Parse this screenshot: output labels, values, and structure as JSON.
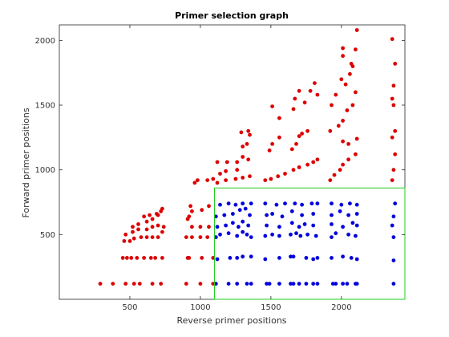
{
  "chart_data": {
    "type": "scatter",
    "title": "Primer selection graph",
    "xlabel": "Reverse primer positions",
    "ylabel": "Forward primer positions",
    "xlim": [
      0,
      2450
    ],
    "ylim": [
      0,
      2120
    ],
    "xticks": [
      500,
      1000,
      1500,
      2000
    ],
    "yticks": [
      500,
      1000,
      1500,
      2000
    ],
    "grid": false,
    "region": {
      "x": [
        1100,
        2450
      ],
      "y": [
        0,
        860
      ],
      "color": "#22cc22"
    },
    "series": [
      {
        "color": "#dd0000",
        "points": [
          [
            290,
            120
          ],
          [
            380,
            120
          ],
          [
            470,
            120
          ],
          [
            530,
            120
          ],
          [
            570,
            120
          ],
          [
            660,
            120
          ],
          [
            720,
            120
          ],
          [
            900,
            120
          ],
          [
            1000,
            120
          ],
          [
            1090,
            120
          ],
          [
            450,
            320
          ],
          [
            480,
            320
          ],
          [
            510,
            320
          ],
          [
            550,
            320
          ],
          [
            600,
            320
          ],
          [
            650,
            320
          ],
          [
            680,
            320
          ],
          [
            730,
            320
          ],
          [
            910,
            320
          ],
          [
            920,
            320
          ],
          [
            1010,
            320
          ],
          [
            1090,
            320
          ],
          [
            460,
            450
          ],
          [
            500,
            450
          ],
          [
            530,
            470
          ],
          [
            580,
            480
          ],
          [
            620,
            480
          ],
          [
            660,
            480
          ],
          [
            700,
            480
          ],
          [
            730,
            520
          ],
          [
            900,
            480
          ],
          [
            940,
            480
          ],
          [
            1000,
            480
          ],
          [
            1050,
            480
          ],
          [
            470,
            500
          ],
          [
            520,
            520
          ],
          [
            560,
            540
          ],
          [
            620,
            540
          ],
          [
            660,
            560
          ],
          [
            700,
            570
          ],
          [
            740,
            560
          ],
          [
            940,
            560
          ],
          [
            1000,
            560
          ],
          [
            1060,
            560
          ],
          [
            520,
            560
          ],
          [
            560,
            580
          ],
          [
            620,
            600
          ],
          [
            660,
            620
          ],
          [
            700,
            650
          ],
          [
            730,
            700
          ],
          [
            910,
            620
          ],
          [
            930,
            720
          ],
          [
            1010,
            690
          ],
          [
            1060,
            720
          ],
          [
            600,
            640
          ],
          [
            640,
            650
          ],
          [
            690,
            660
          ],
          [
            720,
            680
          ],
          [
            920,
            640
          ],
          [
            940,
            680
          ],
          [
            960,
            900
          ],
          [
            980,
            920
          ],
          [
            1050,
            920
          ],
          [
            1090,
            930
          ],
          [
            1120,
            900
          ],
          [
            1180,
            920
          ],
          [
            1250,
            930
          ],
          [
            1300,
            940
          ],
          [
            1350,
            950
          ],
          [
            1120,
            1060
          ],
          [
            1190,
            1060
          ],
          [
            1260,
            1060
          ],
          [
            1300,
            1100
          ],
          [
            1340,
            1080
          ],
          [
            1140,
            970
          ],
          [
            1180,
            990
          ],
          [
            1260,
            1000
          ],
          [
            1300,
            1180
          ],
          [
            1330,
            1200
          ],
          [
            1350,
            1270
          ],
          [
            1290,
            1290
          ],
          [
            1340,
            1300
          ],
          [
            1460,
            920
          ],
          [
            1500,
            930
          ],
          [
            1550,
            950
          ],
          [
            1600,
            970
          ],
          [
            1660,
            1000
          ],
          [
            1700,
            1020
          ],
          [
            1760,
            1040
          ],
          [
            1800,
            1060
          ],
          [
            1830,
            1080
          ],
          [
            1490,
            1150
          ],
          [
            1510,
            1200
          ],
          [
            1560,
            1250
          ],
          [
            1650,
            1160
          ],
          [
            1680,
            1200
          ],
          [
            1700,
            1260
          ],
          [
            1720,
            1280
          ],
          [
            1760,
            1300
          ],
          [
            1510,
            1490
          ],
          [
            1560,
            1400
          ],
          [
            1660,
            1470
          ],
          [
            1670,
            1550
          ],
          [
            1700,
            1610
          ],
          [
            1740,
            1520
          ],
          [
            1780,
            1610
          ],
          [
            1810,
            1670
          ],
          [
            1830,
            1580
          ],
          [
            1920,
            920
          ],
          [
            1950,
            960
          ],
          [
            1990,
            1000
          ],
          [
            2010,
            1040
          ],
          [
            2050,
            1080
          ],
          [
            2100,
            1120
          ],
          [
            2110,
            1240
          ],
          [
            2050,
            1200
          ],
          [
            2010,
            1220
          ],
          [
            1920,
            1300
          ],
          [
            1980,
            1340
          ],
          [
            2010,
            1380
          ],
          [
            2040,
            1460
          ],
          [
            2080,
            1500
          ],
          [
            2100,
            1600
          ],
          [
            2000,
            1700
          ],
          [
            2010,
            1880
          ],
          [
            2100,
            1930
          ],
          [
            1930,
            1500
          ],
          [
            1960,
            1580
          ],
          [
            2030,
            1660
          ],
          [
            2060,
            1740
          ],
          [
            2080,
            1800
          ],
          [
            2110,
            2080
          ],
          [
            2010,
            1940
          ],
          [
            2070,
            1820
          ],
          [
            2360,
            920
          ],
          [
            2370,
            1000
          ],
          [
            2380,
            1120
          ],
          [
            2360,
            1250
          ],
          [
            2380,
            1300
          ],
          [
            2370,
            1500
          ],
          [
            2360,
            1550
          ],
          [
            2370,
            1650
          ],
          [
            2380,
            1820
          ],
          [
            2360,
            2010
          ]
        ]
      },
      {
        "color": "#0000dd",
        "points": [
          [
            1110,
            120
          ],
          [
            1200,
            120
          ],
          [
            1260,
            120
          ],
          [
            1330,
            120
          ],
          [
            1360,
            120
          ],
          [
            1470,
            120
          ],
          [
            1490,
            120
          ],
          [
            1560,
            120
          ],
          [
            1640,
            120
          ],
          [
            1660,
            120
          ],
          [
            1700,
            120
          ],
          [
            1750,
            120
          ],
          [
            1800,
            120
          ],
          [
            1830,
            120
          ],
          [
            1940,
            120
          ],
          [
            1960,
            120
          ],
          [
            2010,
            120
          ],
          [
            2040,
            120
          ],
          [
            2100,
            120
          ],
          [
            2110,
            120
          ],
          [
            2370,
            120
          ],
          [
            1120,
            310
          ],
          [
            1210,
            320
          ],
          [
            1260,
            320
          ],
          [
            1300,
            330
          ],
          [
            1360,
            330
          ],
          [
            1460,
            310
          ],
          [
            1560,
            320
          ],
          [
            1640,
            330
          ],
          [
            1660,
            330
          ],
          [
            1750,
            320
          ],
          [
            1800,
            310
          ],
          [
            1830,
            320
          ],
          [
            1930,
            320
          ],
          [
            2010,
            330
          ],
          [
            2070,
            320
          ],
          [
            2110,
            310
          ],
          [
            2370,
            300
          ],
          [
            1110,
            480
          ],
          [
            1140,
            500
          ],
          [
            1200,
            510
          ],
          [
            1260,
            490
          ],
          [
            1300,
            520
          ],
          [
            1330,
            500
          ],
          [
            1360,
            480
          ],
          [
            1460,
            490
          ],
          [
            1510,
            500
          ],
          [
            1560,
            490
          ],
          [
            1640,
            500
          ],
          [
            1680,
            510
          ],
          [
            1710,
            490
          ],
          [
            1760,
            500
          ],
          [
            1820,
            490
          ],
          [
            1930,
            480
          ],
          [
            1960,
            510
          ],
          [
            2050,
            500
          ],
          [
            2100,
            490
          ],
          [
            2370,
            480
          ],
          [
            1120,
            560
          ],
          [
            1180,
            570
          ],
          [
            1230,
            590
          ],
          [
            1270,
            560
          ],
          [
            1300,
            600
          ],
          [
            1340,
            570
          ],
          [
            1470,
            570
          ],
          [
            1560,
            560
          ],
          [
            1650,
            590
          ],
          [
            1700,
            560
          ],
          [
            1740,
            580
          ],
          [
            1800,
            570
          ],
          [
            1930,
            580
          ],
          [
            2010,
            560
          ],
          [
            2080,
            590
          ],
          [
            2110,
            570
          ],
          [
            2360,
            570
          ],
          [
            1110,
            640
          ],
          [
            1170,
            650
          ],
          [
            1230,
            660
          ],
          [
            1280,
            690
          ],
          [
            1320,
            700
          ],
          [
            1350,
            650
          ],
          [
            1470,
            650
          ],
          [
            1510,
            660
          ],
          [
            1580,
            640
          ],
          [
            1650,
            680
          ],
          [
            1720,
            650
          ],
          [
            1800,
            660
          ],
          [
            1930,
            650
          ],
          [
            1990,
            680
          ],
          [
            2050,
            650
          ],
          [
            2110,
            660
          ],
          [
            2370,
            640
          ],
          [
            1140,
            730
          ],
          [
            1200,
            740
          ],
          [
            1250,
            730
          ],
          [
            1300,
            740
          ],
          [
            1360,
            740
          ],
          [
            1460,
            740
          ],
          [
            1540,
            730
          ],
          [
            1600,
            740
          ],
          [
            1670,
            740
          ],
          [
            1720,
            730
          ],
          [
            1790,
            740
          ],
          [
            1830,
            740
          ],
          [
            1930,
            740
          ],
          [
            2000,
            730
          ],
          [
            2060,
            740
          ],
          [
            2110,
            730
          ],
          [
            2380,
            740
          ]
        ]
      }
    ]
  }
}
